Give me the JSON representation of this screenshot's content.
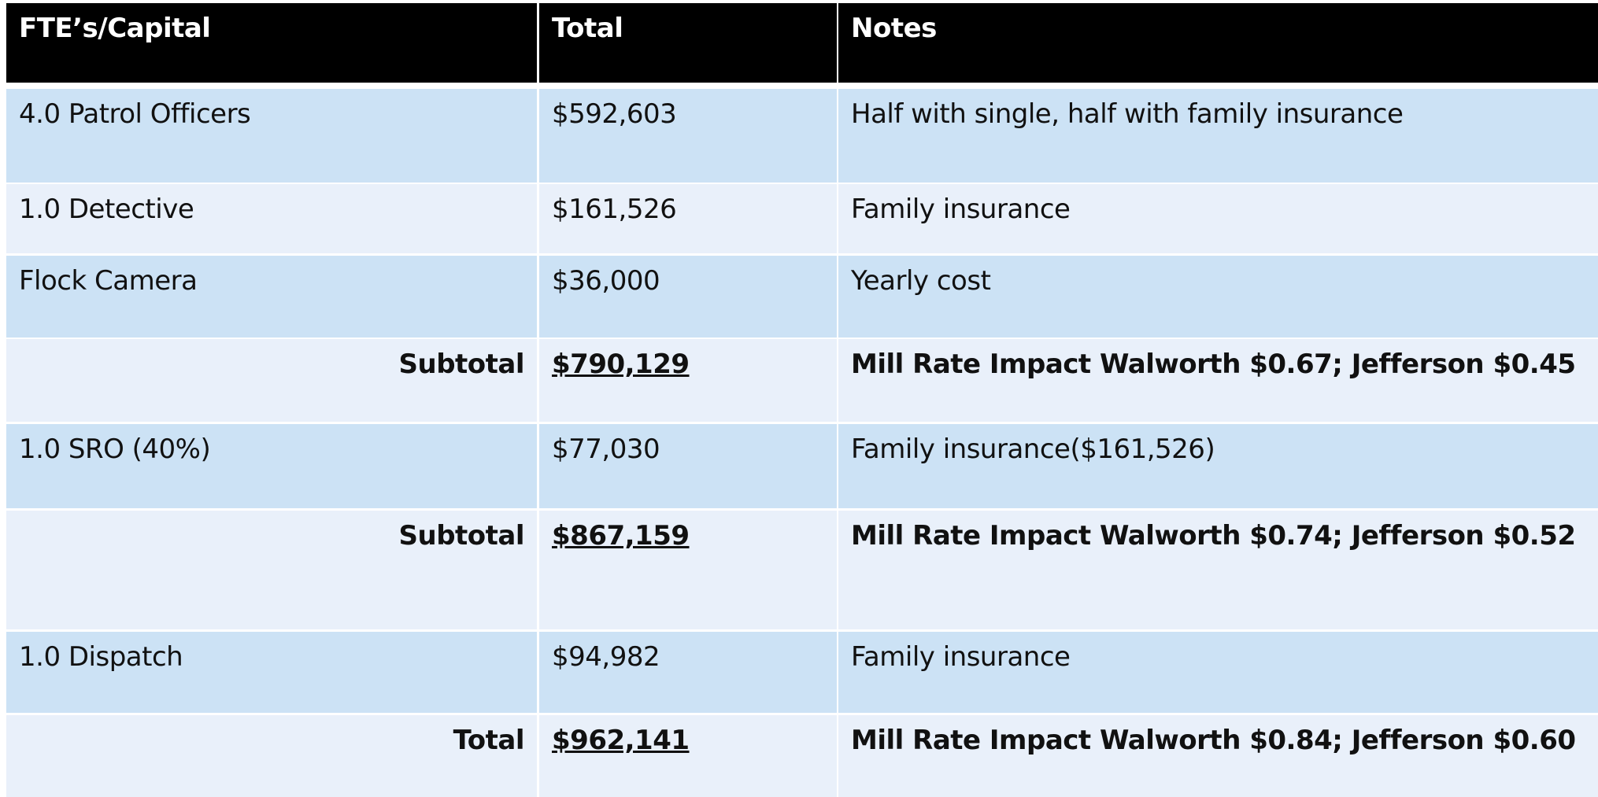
{
  "table": {
    "header": [
      "FTE’s/Capital",
      "Total",
      "Notes"
    ],
    "rows": [
      [
        "4.0 Patrol Officers",
        "$592,603",
        "Half with single, half with family insurance"
      ],
      [
        "1.0 Detective",
        "$161,526",
        "Family insurance"
      ],
      [
        "Flock Camera",
        "$36,000",
        "Yearly cost"
      ],
      [
        "Subtotal",
        "$790,129",
        "Mill Rate Impact Walworth $0.67; Jefferson $0.45"
      ],
      [
        "1.0 SRO (40%)",
        "$77,030",
        "Family insurance($161,526)"
      ],
      [
        "Subtotal",
        "$867,159",
        "Mill Rate Impact Walworth $0.74; Jefferson $0.52"
      ],
      [
        "1.0 Dispatch",
        "$94,982",
        "Family insurance"
      ],
      [
        "Total",
        "$962,141",
        "Mill Rate Impact Walworth $0.84; Jefferson $0.60"
      ]
    ]
  }
}
